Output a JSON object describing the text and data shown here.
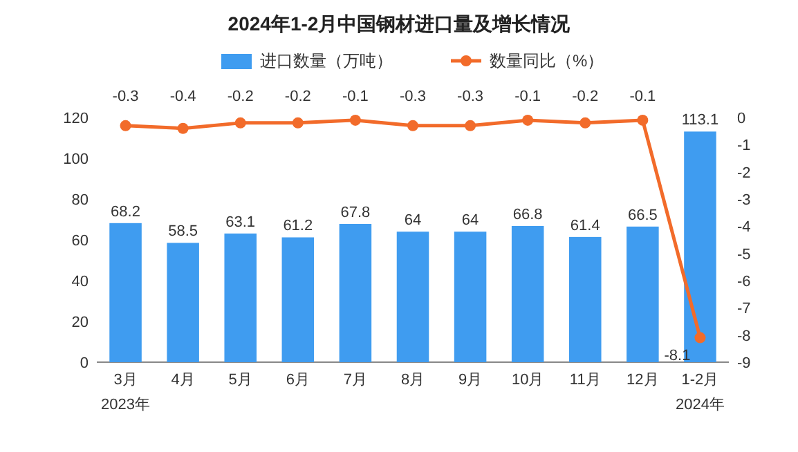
{
  "chart_data": {
    "type": "bar",
    "title": "2024年1-2月中国钢材进口量及增长情况",
    "categories": [
      "3月",
      "4月",
      "5月",
      "6月",
      "7月",
      "8月",
      "9月",
      "10月",
      "11月",
      "12月",
      "1-2月"
    ],
    "series": [
      {
        "name": "进口数量（万吨）",
        "color": "#3f9cf0",
        "values": [
          68.2,
          58.5,
          63.1,
          61.2,
          67.8,
          64,
          64,
          66.8,
          61.4,
          66.5,
          113.1
        ]
      },
      {
        "name": "数量同比（%）",
        "type": "line",
        "axis": "y2",
        "color": "#f26b2a",
        "values": [
          -0.3,
          -0.4,
          -0.2,
          -0.2,
          -0.1,
          -0.3,
          -0.3,
          -0.1,
          -0.2,
          -0.1,
          -8.1
        ]
      }
    ],
    "ylim": [
      0,
      120
    ],
    "yticks": [
      0,
      20,
      40,
      60,
      80,
      100,
      120
    ],
    "y2lim": [
      -9,
      0
    ],
    "y2ticks": [
      0,
      -1,
      -2,
      -3,
      -4,
      -5,
      -6,
      -7,
      -8,
      -9
    ],
    "data_labels": true,
    "legend": "top",
    "marker": "circle",
    "grid": false,
    "annotations": [
      "2023年",
      "2024年"
    ]
  }
}
